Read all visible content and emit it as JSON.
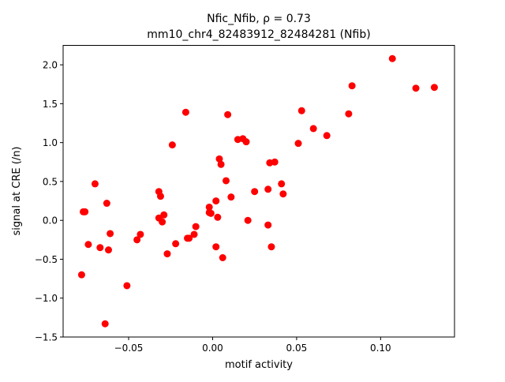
{
  "chart_data": {
    "type": "scatter",
    "title_line1": "Nfic_Nfib, ρ = 0.73",
    "title_line2": "mm10_chr4_82483912_82484281 (Nfib)",
    "xlabel": "motif activity",
    "ylabel": "signal at CRE (/n)",
    "xlim": [
      -0.089,
      0.144
    ],
    "ylim": [
      -1.5,
      2.25
    ],
    "xticks": [
      -0.05,
      0.0,
      0.05,
      0.1
    ],
    "xtick_labels": [
      "−0.05",
      "0.00",
      "0.05",
      "0.10"
    ],
    "yticks": [
      -1.5,
      -1.0,
      -0.5,
      0.0,
      0.5,
      1.0,
      1.5,
      2.0
    ],
    "ytick_labels": [
      "−1.5",
      "−1.0",
      "−0.5",
      "0.0",
      "0.5",
      "1.0",
      "1.5",
      "2.0"
    ],
    "marker_color": "#ff0000",
    "grid": false,
    "points": [
      [
        -0.078,
        -0.7
      ],
      [
        -0.077,
        0.11
      ],
      [
        -0.076,
        0.11
      ],
      [
        -0.074,
        -0.31
      ],
      [
        -0.07,
        0.47
      ],
      [
        -0.067,
        -0.35
      ],
      [
        -0.064,
        -1.33
      ],
      [
        -0.063,
        0.22
      ],
      [
        -0.062,
        -0.38
      ],
      [
        -0.061,
        -0.17
      ],
      [
        -0.051,
        -0.84
      ],
      [
        -0.045,
        -0.25
      ],
      [
        -0.043,
        -0.18
      ],
      [
        -0.032,
        0.37
      ],
      [
        -0.032,
        0.03
      ],
      [
        -0.031,
        0.31
      ],
      [
        -0.03,
        -0.02
      ],
      [
        -0.029,
        0.07
      ],
      [
        -0.027,
        -0.43
      ],
      [
        -0.024,
        0.97
      ],
      [
        -0.022,
        -0.3
      ],
      [
        -0.016,
        1.39
      ],
      [
        -0.015,
        -0.23
      ],
      [
        -0.014,
        -0.23
      ],
      [
        -0.011,
        -0.18
      ],
      [
        -0.01,
        -0.08
      ],
      [
        -0.002,
        0.1
      ],
      [
        -0.002,
        0.17
      ],
      [
        -0.001,
        0.09
      ],
      [
        0.002,
        0.25
      ],
      [
        0.002,
        -0.34
      ],
      [
        0.003,
        0.04
      ],
      [
        0.004,
        0.79
      ],
      [
        0.005,
        0.72
      ],
      [
        0.006,
        -0.48
      ],
      [
        0.008,
        0.51
      ],
      [
        0.009,
        1.36
      ],
      [
        0.011,
        0.3
      ],
      [
        0.015,
        1.04
      ],
      [
        0.018,
        1.05
      ],
      [
        0.02,
        1.01
      ],
      [
        0.021,
        0.0
      ],
      [
        0.025,
        0.37
      ],
      [
        0.033,
        0.4
      ],
      [
        0.033,
        -0.06
      ],
      [
        0.034,
        0.74
      ],
      [
        0.035,
        -0.34
      ],
      [
        0.037,
        0.75
      ],
      [
        0.041,
        0.47
      ],
      [
        0.042,
        0.34
      ],
      [
        0.051,
        0.99
      ],
      [
        0.053,
        1.41
      ],
      [
        0.06,
        1.18
      ],
      [
        0.068,
        1.09
      ],
      [
        0.081,
        1.37
      ],
      [
        0.083,
        1.73
      ],
      [
        0.107,
        2.08
      ],
      [
        0.121,
        1.7
      ],
      [
        0.132,
        1.71
      ]
    ]
  }
}
